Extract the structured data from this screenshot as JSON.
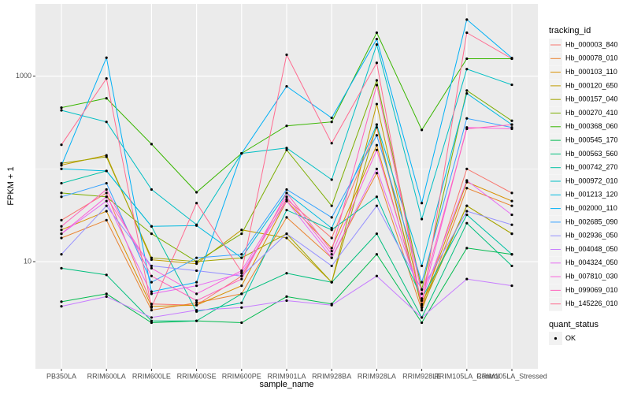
{
  "chart_data": {
    "type": "line",
    "x_label": "sample_name",
    "y_label": "FPKM + 1",
    "log_y": true,
    "grid": true,
    "ylim": [
      0.7,
      6000
    ],
    "yticks": [
      10,
      1000
    ],
    "y_minor_ticks": [
      100
    ],
    "legend_title": "tracking_id",
    "point_legend_title": "quant_status",
    "point_legend_label": "OK",
    "categories": [
      "PB350LA",
      "RRIM600LA",
      "RRIM600LE",
      "RRIM600SE",
      "RRIM600PE",
      "RRIM901LA",
      "RRIM928BA",
      "RRIM928LA",
      "RRIM928LE",
      "RRIM105LA_Control",
      "RRIM105LA_Stressed"
    ],
    "series": [
      {
        "name": "Hb_000003_840",
        "color": "#F8766D",
        "values": [
          28,
          55,
          3.5,
          3.4,
          7,
          47,
          18,
          280,
          3.2,
          100,
          55
        ]
      },
      {
        "name": "Hb_000078_010",
        "color": "#EA8331",
        "values": [
          18,
          28,
          3.0,
          3.6,
          4.5,
          30,
          11,
          90,
          3.0,
          62,
          40
        ]
      },
      {
        "name": "Hb_000103_110",
        "color": "#D89000",
        "values": [
          22,
          35,
          3.3,
          3.4,
          5.5,
          45,
          14,
          180,
          3.4,
          72,
          45
        ]
      },
      {
        "name": "Hb_000120_650",
        "color": "#C09B00",
        "values": [
          110,
          140,
          10.5,
          9.5,
          22,
          18,
          6,
          500,
          3.5,
          40,
          20
        ]
      },
      {
        "name": "Hb_000157_040",
        "color": "#A3A500",
        "values": [
          115,
          135,
          11,
          10,
          11,
          20,
          6,
          300,
          3.2,
          40,
          20
        ]
      },
      {
        "name": "Hb_000270_410",
        "color": "#7CAE00",
        "values": [
          55,
          50,
          20,
          10,
          20,
          160,
          40,
          900,
          5,
          700,
          330
        ]
      },
      {
        "name": "Hb_000368_060",
        "color": "#39B600",
        "values": [
          457,
          577,
          185,
          56,
          147,
          291,
          321,
          2940,
          263,
          1540,
          1540
        ]
      },
      {
        "name": "Hb_000545_170",
        "color": "#00BB4E",
        "values": [
          3.7,
          4.5,
          2.2,
          2.3,
          2.2,
          4.2,
          3.5,
          12,
          2.2,
          14,
          12
        ]
      },
      {
        "name": "Hb_000563_560",
        "color": "#00BF7D",
        "values": [
          8.5,
          7.2,
          2.3,
          2.3,
          4.5,
          7.5,
          6.0,
          20,
          2.5,
          26,
          9
        ]
      },
      {
        "name": "Hb_000742_270",
        "color": "#00C1A3",
        "values": [
          70,
          95,
          24,
          2.9,
          3.6,
          36,
          22,
          50,
          4,
          32,
          12
        ]
      },
      {
        "name": "Hb_000972_010",
        "color": "#00BFC4",
        "values": [
          428,
          321,
          60,
          25,
          147,
          168,
          76.6,
          2190,
          28.8,
          1190,
          807
        ]
      },
      {
        "name": "Hb_001213_120",
        "color": "#00BAE0",
        "values": [
          100,
          95,
          24,
          24.5,
          11,
          55,
          23,
          300,
          9,
          650,
          300
        ]
      },
      {
        "name": "Hb_002000_110",
        "color": "#00B0F6",
        "values": [
          109,
          1580,
          4.75,
          6.0,
          147,
          776,
          355,
          2510,
          42.8,
          4070,
          1570
        ]
      },
      {
        "name": "Hb_002685_090",
        "color": "#35A2FF",
        "values": [
          50,
          70,
          6,
          11,
          12,
          60,
          30,
          230,
          6,
          350,
          280
        ]
      },
      {
        "name": "Hb_002936_050",
        "color": "#9590FF",
        "values": [
          12,
          40,
          9,
          8,
          7,
          20,
          9,
          40,
          5,
          35,
          25
        ]
      },
      {
        "name": "Hb_004048_050",
        "color": "#C77CFF",
        "values": [
          3.3,
          4.2,
          2.5,
          3.0,
          3.2,
          3.8,
          3.4,
          7.0,
          2.5,
          6.5,
          5.5
        ]
      },
      {
        "name": "Hb_004324_050",
        "color": "#E76BF3",
        "values": [
          20,
          45,
          4.5,
          5.5,
          7.5,
          45,
          11,
          100,
          4.0,
          75,
          32
        ]
      },
      {
        "name": "Hb_007810_030",
        "color": "#FA62DB",
        "values": [
          20,
          50,
          8.5,
          4.5,
          8,
          50,
          12,
          160,
          3.8,
          280,
          270
        ]
      },
      {
        "name": "Hb_099069_010",
        "color": "#FF62BC",
        "values": [
          24,
          60,
          7,
          3.8,
          6.5,
          55,
          13,
          800,
          4.5,
          270,
          300
        ]
      },
      {
        "name": "Hb_145226_010",
        "color": "#FF6C91",
        "values": [
          182,
          942,
          3.2,
          42.8,
          7.75,
          1700,
          189,
          1390,
          3.2,
          2940,
          1540
        ]
      }
    ]
  }
}
